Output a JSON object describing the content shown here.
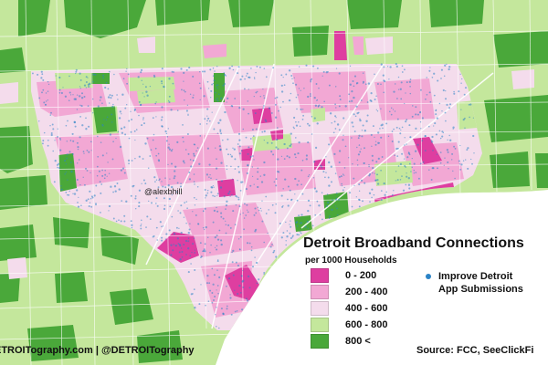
{
  "title": "Detroit Broadband Connections",
  "subtitle": "per 1000 Households",
  "legend": {
    "classes": [
      {
        "label": "0 - 200",
        "color": "#de3ea0"
      },
      {
        "label": "200 - 400",
        "color": "#f2a8d4"
      },
      {
        "label": "400 - 600",
        "color": "#f4dcec"
      },
      {
        "label": "600 - 800",
        "color": "#c4e79c"
      },
      {
        "label": "800 <",
        "color": "#4aa83a"
      }
    ],
    "points": {
      "label_line1": "Improve Detroit",
      "label_line2": "App Submissions",
      "color": "#2b83c6"
    }
  },
  "credit": "ETROITography.com | @DETROITography",
  "source": "Source: FCC, SeeClickFi",
  "watermark": "@alexbhill",
  "map": {
    "water_color": "#ffffff",
    "boundary_color": "#ffffff"
  }
}
